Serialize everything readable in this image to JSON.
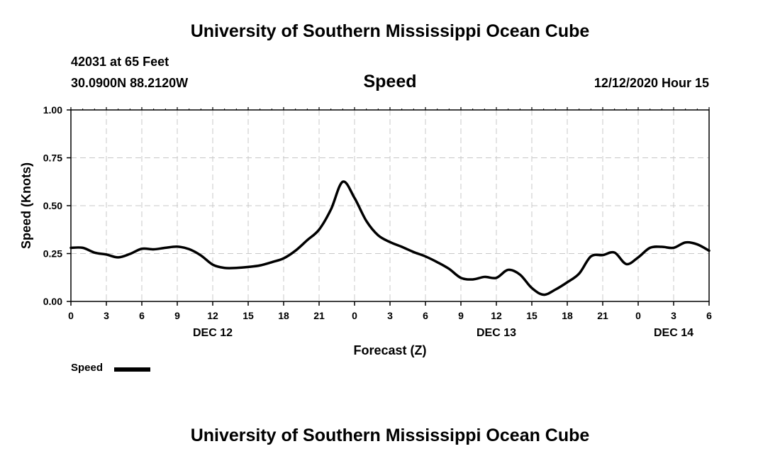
{
  "header": {
    "title": "University of Southern Mississippi Ocean Cube",
    "station": "42031 at 65 Feet",
    "coords": "30.0900N 88.2120W",
    "timestamp": "12/12/2020 Hour 15"
  },
  "footer": {
    "title": "University of Southern Mississippi Ocean Cube"
  },
  "legend": {
    "label": "Speed"
  },
  "chart_data": {
    "type": "line",
    "title": "Speed",
    "xlabel": "Forecast (Z)",
    "ylabel": "Speed (Knots)",
    "ylim": [
      0,
      1.0
    ],
    "xlim": [
      0,
      54
    ],
    "x_unit": "hours from DEC 12 00Z",
    "grid": true,
    "line_color": "#000000",
    "y_ticks": [
      {
        "value": 0.0,
        "label": "0.00"
      },
      {
        "value": 0.25,
        "label": "0.25"
      },
      {
        "value": 0.5,
        "label": "0.50"
      },
      {
        "value": 0.75,
        "label": "0.75"
      },
      {
        "value": 1.0,
        "label": "1.00"
      }
    ],
    "x_ticks": [
      {
        "value": 0,
        "label": "0"
      },
      {
        "value": 3,
        "label": "3"
      },
      {
        "value": 6,
        "label": "6"
      },
      {
        "value": 9,
        "label": "9"
      },
      {
        "value": 12,
        "label": "12"
      },
      {
        "value": 15,
        "label": "15"
      },
      {
        "value": 18,
        "label": "18"
      },
      {
        "value": 21,
        "label": "21"
      },
      {
        "value": 24,
        "label": "0"
      },
      {
        "value": 27,
        "label": "3"
      },
      {
        "value": 30,
        "label": "6"
      },
      {
        "value": 33,
        "label": "9"
      },
      {
        "value": 36,
        "label": "12"
      },
      {
        "value": 39,
        "label": "15"
      },
      {
        "value": 42,
        "label": "18"
      },
      {
        "value": 45,
        "label": "21"
      },
      {
        "value": 48,
        "label": "0"
      },
      {
        "value": 51,
        "label": "3"
      },
      {
        "value": 54,
        "label": "6"
      }
    ],
    "day_labels": [
      {
        "value": 12,
        "label": "DEC 12"
      },
      {
        "value": 36,
        "label": "DEC 13"
      },
      {
        "value": 51,
        "label": "DEC 14"
      }
    ],
    "series": [
      {
        "name": "Speed",
        "x": [
          0,
          1,
          2,
          3,
          4,
          5,
          6,
          7,
          8,
          9,
          10,
          11,
          12,
          13,
          14,
          15,
          16,
          17,
          18,
          19,
          20,
          21,
          22,
          23,
          24,
          25,
          26,
          27,
          28,
          29,
          30,
          31,
          32,
          33,
          34,
          35,
          36,
          37,
          38,
          39,
          40,
          41,
          42,
          43,
          44,
          45,
          46,
          47,
          48,
          49,
          50,
          51,
          52,
          53,
          54
        ],
        "values": [
          0.28,
          0.28,
          0.255,
          0.245,
          0.23,
          0.248,
          0.275,
          0.272,
          0.28,
          0.286,
          0.273,
          0.24,
          0.192,
          0.175,
          0.175,
          0.18,
          0.188,
          0.205,
          0.225,
          0.265,
          0.32,
          0.375,
          0.48,
          0.625,
          0.54,
          0.42,
          0.345,
          0.31,
          0.285,
          0.258,
          0.235,
          0.205,
          0.17,
          0.123,
          0.115,
          0.128,
          0.123,
          0.165,
          0.14,
          0.07,
          0.035,
          0.062,
          0.1,
          0.145,
          0.235,
          0.242,
          0.255,
          0.195,
          0.23,
          0.28,
          0.285,
          0.28,
          0.308,
          0.298,
          0.265
        ]
      }
    ]
  }
}
